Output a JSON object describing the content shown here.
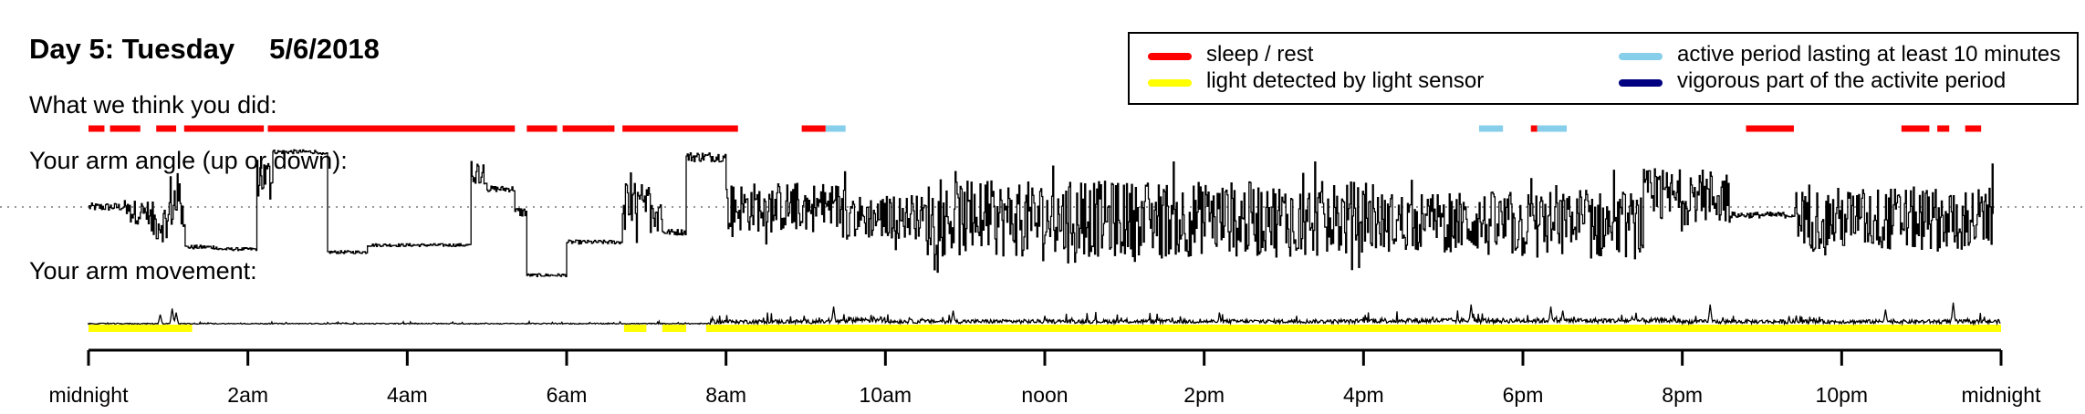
{
  "header": {
    "day": "Day 5: Tuesday",
    "date": "5/6/2018"
  },
  "sections": {
    "activity_label": "What we think you did:",
    "angle_label": "Your arm angle (up or down):",
    "movement_label": "Your arm movement:"
  },
  "legend": {
    "items": [
      {
        "label": "sleep / rest",
        "color": "#ff0000"
      },
      {
        "label": "light detected by light sensor",
        "color": "#ffff00"
      },
      {
        "label": "active period lasting at least 10 minutes",
        "color": "#87ceeb"
      },
      {
        "label": "vigorous part of the activite period",
        "color": "#000080"
      }
    ]
  },
  "chart_data": {
    "type": "line",
    "x_unit": "hours",
    "xlim": [
      0,
      24
    ],
    "ticks": [
      {
        "h": 0,
        "label": "midnight"
      },
      {
        "h": 2,
        "label": "2am"
      },
      {
        "h": 4,
        "label": "4am"
      },
      {
        "h": 6,
        "label": "6am"
      },
      {
        "h": 8,
        "label": "8am"
      },
      {
        "h": 10,
        "label": "10am"
      },
      {
        "h": 12,
        "label": "noon"
      },
      {
        "h": 14,
        "label": "2pm"
      },
      {
        "h": 16,
        "label": "4pm"
      },
      {
        "h": 18,
        "label": "6pm"
      },
      {
        "h": 20,
        "label": "8pm"
      },
      {
        "h": 22,
        "label": "10pm"
      },
      {
        "h": 24,
        "label": "midnight"
      }
    ],
    "sleep_rest_periods": [
      [
        0.0,
        0.2
      ],
      [
        0.27,
        0.65
      ],
      [
        0.85,
        1.1
      ],
      [
        1.2,
        2.2
      ],
      [
        2.25,
        5.35
      ],
      [
        5.5,
        5.88
      ],
      [
        5.95,
        6.6
      ],
      [
        6.7,
        8.15
      ],
      [
        8.95,
        9.25
      ],
      [
        18.1,
        18.18
      ],
      [
        20.8,
        21.4
      ],
      [
        22.75,
        23.1
      ],
      [
        23.2,
        23.35
      ],
      [
        23.55,
        23.75
      ]
    ],
    "active_periods": [
      [
        9.25,
        9.5
      ],
      [
        17.45,
        17.75
      ],
      [
        18.18,
        18.55
      ]
    ],
    "vigorous_periods": [],
    "light_detected_periods": [
      [
        0.0,
        1.3
      ],
      [
        6.72,
        7.0
      ],
      [
        7.2,
        7.5
      ],
      [
        7.75,
        24.0
      ]
    ],
    "arm_angle": {
      "reference_level": 0,
      "ylim": [
        -90,
        90
      ],
      "segments": [
        {
          "start": 0.0,
          "end": 0.45,
          "level": 0,
          "noise": 8
        },
        {
          "start": 0.45,
          "end": 0.75,
          "level": -5,
          "noise": 12
        },
        {
          "start": 0.75,
          "end": 1.0,
          "level": -15,
          "noise": 20
        },
        {
          "start": 1.0,
          "end": 1.2,
          "level": 5,
          "noise": 30
        },
        {
          "start": 1.2,
          "end": 1.6,
          "level": -40,
          "noise": 4
        },
        {
          "start": 1.6,
          "end": 2.1,
          "level": -42,
          "noise": 3
        },
        {
          "start": 2.1,
          "end": 2.3,
          "level": 30,
          "noise": 20
        },
        {
          "start": 2.3,
          "end": 2.9,
          "level": 55,
          "noise": 4
        },
        {
          "start": 2.9,
          "end": 3.0,
          "level": 52,
          "noise": 4
        },
        {
          "start": 3.0,
          "end": 3.5,
          "level": -45,
          "noise": 3
        },
        {
          "start": 3.5,
          "end": 4.8,
          "level": -38,
          "noise": 3
        },
        {
          "start": 4.8,
          "end": 5.0,
          "level": 35,
          "noise": 12
        },
        {
          "start": 5.0,
          "end": 5.35,
          "level": 18,
          "noise": 6
        },
        {
          "start": 5.35,
          "end": 5.5,
          "level": -5,
          "noise": 10
        },
        {
          "start": 5.5,
          "end": 6.0,
          "level": -68,
          "noise": 3
        },
        {
          "start": 6.0,
          "end": 6.7,
          "level": -35,
          "noise": 4
        },
        {
          "start": 6.7,
          "end": 7.2,
          "level": 0,
          "noise": 25
        },
        {
          "start": 7.2,
          "end": 7.5,
          "level": -25,
          "noise": 6
        },
        {
          "start": 7.5,
          "end": 8.0,
          "level": 50,
          "noise": 10
        },
        {
          "start": 8.0,
          "end": 9.5,
          "level": 0,
          "noise": 25
        },
        {
          "start": 9.5,
          "end": 10.5,
          "level": -10,
          "noise": 22
        },
        {
          "start": 10.5,
          "end": 16.0,
          "level": -12,
          "noise": 38
        },
        {
          "start": 16.0,
          "end": 17.5,
          "level": -15,
          "noise": 30
        },
        {
          "start": 17.5,
          "end": 19.5,
          "level": -18,
          "noise": 34
        },
        {
          "start": 19.5,
          "end": 20.6,
          "level": 10,
          "noise": 28
        },
        {
          "start": 20.6,
          "end": 21.4,
          "level": -8,
          "noise": 6
        },
        {
          "start": 21.4,
          "end": 23.9,
          "level": -12,
          "noise": 32
        }
      ]
    },
    "arm_movement": {
      "ylim": [
        0,
        1
      ],
      "segments": [
        {
          "start": 0.0,
          "end": 7.8,
          "level": 0.05,
          "noise": 0.05
        },
        {
          "start": 7.8,
          "end": 9.5,
          "level": 0.1,
          "noise": 0.2
        },
        {
          "start": 9.5,
          "end": 10.0,
          "level": 0.2,
          "noise": 0.3
        },
        {
          "start": 10.0,
          "end": 16.0,
          "level": 0.12,
          "noise": 0.2
        },
        {
          "start": 16.0,
          "end": 20.0,
          "level": 0.15,
          "noise": 0.25
        },
        {
          "start": 20.0,
          "end": 21.0,
          "level": 0.1,
          "noise": 0.2
        },
        {
          "start": 21.0,
          "end": 24.0,
          "level": 0.1,
          "noise": 0.2
        }
      ],
      "spikes": [
        {
          "h": 0.9,
          "v": 0.5
        },
        {
          "h": 1.05,
          "v": 0.8
        },
        {
          "h": 1.1,
          "v": 0.6
        },
        {
          "h": 9.35,
          "v": 0.9
        },
        {
          "h": 10.85,
          "v": 0.7
        },
        {
          "h": 17.35,
          "v": 1.0
        },
        {
          "h": 18.35,
          "v": 0.9
        },
        {
          "h": 18.5,
          "v": 0.7
        },
        {
          "h": 20.35,
          "v": 1.0
        },
        {
          "h": 22.55,
          "v": 0.75
        },
        {
          "h": 23.4,
          "v": 1.1
        }
      ]
    }
  }
}
